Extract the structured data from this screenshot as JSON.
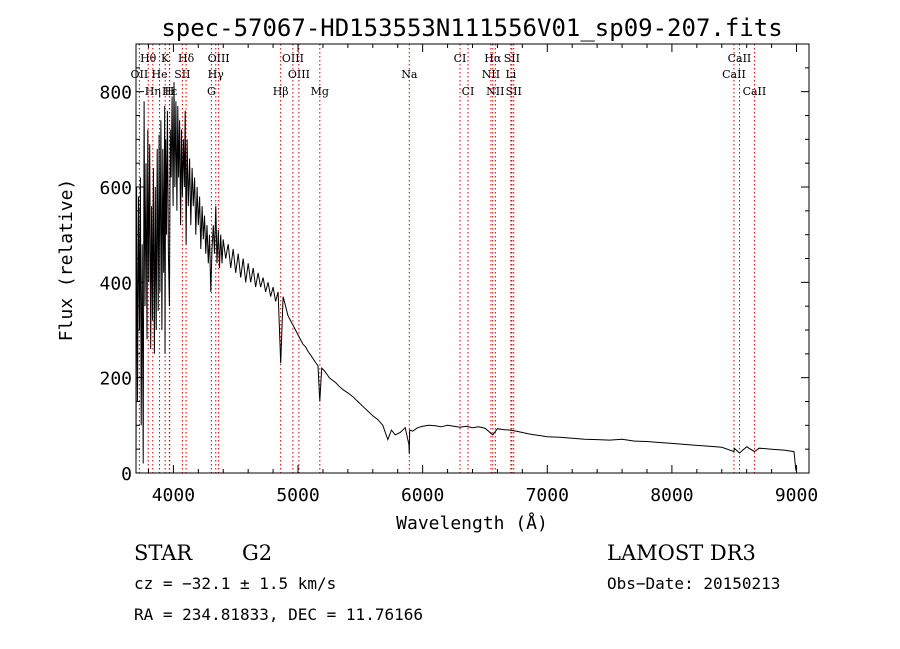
{
  "colors": {
    "line_marker": "#cc0000",
    "spectrum": "#000000",
    "axis": "#000000"
  },
  "chart_data": {
    "type": "line",
    "title": "spec-57067-HD153553N111556V01_sp09-207.fits",
    "xlabel": "Wavelength (Å)",
    "ylabel": "Flux (relative)",
    "xlim": [
      3700,
      9100
    ],
    "ylim": [
      0,
      900
    ],
    "x_ticks": [
      4000,
      5000,
      6000,
      7000,
      8000,
      9000
    ],
    "y_ticks": [
      0,
      200,
      400,
      600,
      800
    ],
    "series": [
      {
        "name": "flux",
        "points": [
          [
            3700,
            5
          ],
          [
            3705,
            600
          ],
          [
            3712,
            150
          ],
          [
            3720,
            580
          ],
          [
            3728,
            300
          ],
          [
            3735,
            620
          ],
          [
            3742,
            100
          ],
          [
            3750,
            480
          ],
          [
            3758,
            20
          ],
          [
            3765,
            780
          ],
          [
            3772,
            350
          ],
          [
            3780,
            650
          ],
          [
            3788,
            280
          ],
          [
            3795,
            720
          ],
          [
            3802,
            400
          ],
          [
            3810,
            690
          ],
          [
            3818,
            260
          ],
          [
            3825,
            560
          ],
          [
            3832,
            320
          ],
          [
            3840,
            640
          ],
          [
            3848,
            250
          ],
          [
            3855,
            600
          ],
          [
            3862,
            300
          ],
          [
            3870,
            680
          ],
          [
            3878,
            340
          ],
          [
            3885,
            710
          ],
          [
            3892,
            380
          ],
          [
            3900,
            740
          ],
          [
            3908,
            300
          ],
          [
            3915,
            680
          ],
          [
            3922,
            420
          ],
          [
            3930,
            770
          ],
          [
            3933,
            250
          ],
          [
            3938,
            700
          ],
          [
            3945,
            500
          ],
          [
            3952,
            760
          ],
          [
            3960,
            460
          ],
          [
            3968,
            350
          ],
          [
            3975,
            720
          ],
          [
            3982,
            620
          ],
          [
            3990,
            790
          ],
          [
            3998,
            560
          ],
          [
            4005,
            820
          ],
          [
            4012,
            600
          ],
          [
            4020,
            780
          ],
          [
            4028,
            550
          ],
          [
            4035,
            770
          ],
          [
            4042,
            620
          ],
          [
            4050,
            740
          ],
          [
            4058,
            520
          ],
          [
            4065,
            720
          ],
          [
            4072,
            580
          ],
          [
            4080,
            700
          ],
          [
            4088,
            600
          ],
          [
            4095,
            760
          ],
          [
            4102,
            480
          ],
          [
            4110,
            700
          ],
          [
            4120,
            560
          ],
          [
            4130,
            660
          ],
          [
            4140,
            520
          ],
          [
            4150,
            640
          ],
          [
            4160,
            560
          ],
          [
            4170,
            620
          ],
          [
            4180,
            500
          ],
          [
            4190,
            600
          ],
          [
            4200,
            520
          ],
          [
            4210,
            580
          ],
          [
            4220,
            470
          ],
          [
            4230,
            560
          ],
          [
            4240,
            490
          ],
          [
            4250,
            540
          ],
          [
            4260,
            460
          ],
          [
            4270,
            520
          ],
          [
            4280,
            440
          ],
          [
            4290,
            500
          ],
          [
            4300,
            380
          ],
          [
            4310,
            470
          ],
          [
            4320,
            520
          ],
          [
            4330,
            460
          ],
          [
            4340,
            560
          ],
          [
            4350,
            440
          ],
          [
            4360,
            510
          ],
          [
            4370,
            430
          ],
          [
            4380,
            500
          ],
          [
            4390,
            440
          ],
          [
            4400,
            490
          ],
          [
            4420,
            450
          ],
          [
            4440,
            480
          ],
          [
            4460,
            430
          ],
          [
            4480,
            470
          ],
          [
            4500,
            420
          ],
          [
            4520,
            460
          ],
          [
            4540,
            410
          ],
          [
            4560,
            450
          ],
          [
            4580,
            400
          ],
          [
            4600,
            440
          ],
          [
            4620,
            400
          ],
          [
            4640,
            430
          ],
          [
            4660,
            390
          ],
          [
            4680,
            420
          ],
          [
            4700,
            390
          ],
          [
            4720,
            410
          ],
          [
            4740,
            380
          ],
          [
            4760,
            400
          ],
          [
            4780,
            370
          ],
          [
            4800,
            390
          ],
          [
            4820,
            360
          ],
          [
            4840,
            380
          ],
          [
            4861,
            230
          ],
          [
            4880,
            370
          ],
          [
            4900,
            350
          ],
          [
            4920,
            330
          ],
          [
            4940,
            320
          ],
          [
            4960,
            310
          ],
          [
            4980,
            300
          ],
          [
            5000,
            290
          ],
          [
            5020,
            280
          ],
          [
            5040,
            270
          ],
          [
            5060,
            265
          ],
          [
            5080,
            255
          ],
          [
            5100,
            248
          ],
          [
            5120,
            240
          ],
          [
            5140,
            232
          ],
          [
            5160,
            225
          ],
          [
            5175,
            150
          ],
          [
            5190,
            220
          ],
          [
            5210,
            215
          ],
          [
            5230,
            208
          ],
          [
            5250,
            200
          ],
          [
            5270,
            196
          ],
          [
            5300,
            190
          ],
          [
            5330,
            182
          ],
          [
            5360,
            175
          ],
          [
            5400,
            168
          ],
          [
            5440,
            160
          ],
          [
            5480,
            150
          ],
          [
            5520,
            140
          ],
          [
            5560,
            130
          ],
          [
            5600,
            120
          ],
          [
            5640,
            112
          ],
          [
            5680,
            100
          ],
          [
            5700,
            85
          ],
          [
            5720,
            70
          ],
          [
            5750,
            90
          ],
          [
            5780,
            80
          ],
          [
            5820,
            85
          ],
          [
            5860,
            95
          ],
          [
            5890,
            60
          ],
          [
            5893,
            40
          ],
          [
            5896,
            90
          ],
          [
            5920,
            88
          ],
          [
            5960,
            95
          ],
          [
            6000,
            98
          ],
          [
            6050,
            100
          ],
          [
            6100,
            99
          ],
          [
            6150,
            97
          ],
          [
            6200,
            100
          ],
          [
            6250,
            98
          ],
          [
            6300,
            96
          ],
          [
            6350,
            98
          ],
          [
            6400,
            95
          ],
          [
            6450,
            97
          ],
          [
            6500,
            94
          ],
          [
            6563,
            80
          ],
          [
            6600,
            93
          ],
          [
            6650,
            91
          ],
          [
            6700,
            90
          ],
          [
            6750,
            88
          ],
          [
            6800,
            85
          ],
          [
            6850,
            82
          ],
          [
            6900,
            80
          ],
          [
            6950,
            78
          ],
          [
            7000,
            76
          ],
          [
            7100,
            75
          ],
          [
            7200,
            73
          ],
          [
            7300,
            71
          ],
          [
            7400,
            70
          ],
          [
            7500,
            69
          ],
          [
            7600,
            71
          ],
          [
            7700,
            67
          ],
          [
            7800,
            66
          ],
          [
            7900,
            64
          ],
          [
            8000,
            62
          ],
          [
            8100,
            60
          ],
          [
            8200,
            58
          ],
          [
            8300,
            56
          ],
          [
            8400,
            54
          ],
          [
            8498,
            45
          ],
          [
            8500,
            52
          ],
          [
            8542,
            42
          ],
          [
            8600,
            55
          ],
          [
            8662,
            45
          ],
          [
            8700,
            52
          ],
          [
            8800,
            50
          ],
          [
            8900,
            48
          ],
          [
            8980,
            45
          ],
          [
            8995,
            5
          ]
        ]
      }
    ],
    "line_markers": [
      {
        "label": "Hθ",
        "wavelength": 3798,
        "row": 1
      },
      {
        "label": "OII",
        "wavelength": 3727,
        "row": 2
      },
      {
        "label": "Hη",
        "wavelength": 3835,
        "row": 3
      },
      {
        "label": "K",
        "wavelength": 3934,
        "row": 1
      },
      {
        "label": "He",
        "wavelength": 3889,
        "row": 2
      },
      {
        "label": "Hε",
        "wavelength": 3970,
        "row": 3
      },
      {
        "label": "SII",
        "wavelength": 4072,
        "row": 2
      },
      {
        "label": "H",
        "wavelength": 3968,
        "row": 3
      },
      {
        "label": "Hδ",
        "wavelength": 4102,
        "row": 1
      },
      {
        "label": "OIII",
        "wavelength": 4363,
        "row": 1
      },
      {
        "label": "Hγ",
        "wavelength": 4340,
        "row": 2
      },
      {
        "label": "G",
        "wavelength": 4305,
        "row": 3
      },
      {
        "label": "OIII",
        "wavelength": 4959,
        "row": 1
      },
      {
        "label": "OIII",
        "wavelength": 5007,
        "row": 2
      },
      {
        "label": "Hβ",
        "wavelength": 4861,
        "row": 3
      },
      {
        "label": "Mg",
        "wavelength": 5175,
        "row": 3
      },
      {
        "label": "Na",
        "wavelength": 5893,
        "row": 2
      },
      {
        "label": "CI",
        "wavelength": 6300,
        "row": 1
      },
      {
        "label": "CI",
        "wavelength": 6364,
        "row": 3
      },
      {
        "label": "Hα",
        "wavelength": 6563,
        "row": 1
      },
      {
        "label": "NII",
        "wavelength": 6548,
        "row": 2
      },
      {
        "label": "NII",
        "wavelength": 6583,
        "row": 3
      },
      {
        "label": "SII",
        "wavelength": 6716,
        "row": 1
      },
      {
        "label": "Li",
        "wavelength": 6708,
        "row": 2
      },
      {
        "label": "SII",
        "wavelength": 6731,
        "row": 3
      },
      {
        "label": "CaII",
        "wavelength": 8542,
        "row": 1
      },
      {
        "label": "CaII",
        "wavelength": 8498,
        "row": 2
      },
      {
        "label": "CaII",
        "wavelength": 8662,
        "row": 3
      }
    ]
  },
  "info": {
    "object_class": "STAR",
    "subclass": "G2",
    "survey": "LAMOST DR3",
    "cz": "cz = −32.1 ± 1.5 km/s",
    "obs_date": "Obs−Date: 20150213",
    "coords": "RA = 234.81833, DEC =  11.76166"
  }
}
